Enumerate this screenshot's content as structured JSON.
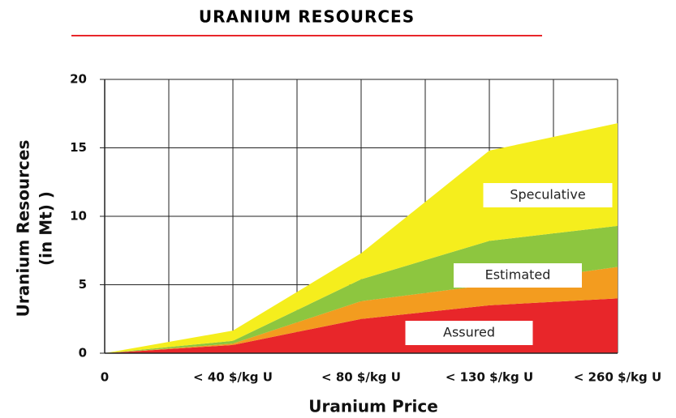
{
  "chart_data": {
    "type": "stacked_area",
    "title": "URANIUM RESOURCES",
    "x_label": "Uranium Price",
    "y_label": [
      "Uranium Resources",
      "(in Mt) )"
    ],
    "categories": [
      "0",
      "< 40 $/kg U",
      "< 80 $/kg U",
      "< 130 $/kg U",
      "< 260 $/kg U"
    ],
    "series": [
      {
        "name": "Assured",
        "color": "#e8262a",
        "values": [
          0,
          0.6,
          2.5,
          3.5,
          4.0
        ]
      },
      {
        "name": "Estimated",
        "color": "#f39c1f",
        "values": [
          0,
          0.1,
          1.3,
          1.5,
          2.3
        ]
      },
      {
        "color": "#8dc63f",
        "values": [
          0,
          0.2,
          1.6,
          3.2,
          3.0
        ]
      },
      {
        "name": "Speculative",
        "color": "#f5ee1d",
        "values": [
          0,
          0.75,
          1.9,
          6.6,
          7.5
        ]
      }
    ],
    "ylim": [
      0,
      20
    ],
    "yticks": [
      0,
      5,
      10,
      15,
      20
    ],
    "grid": true
  }
}
